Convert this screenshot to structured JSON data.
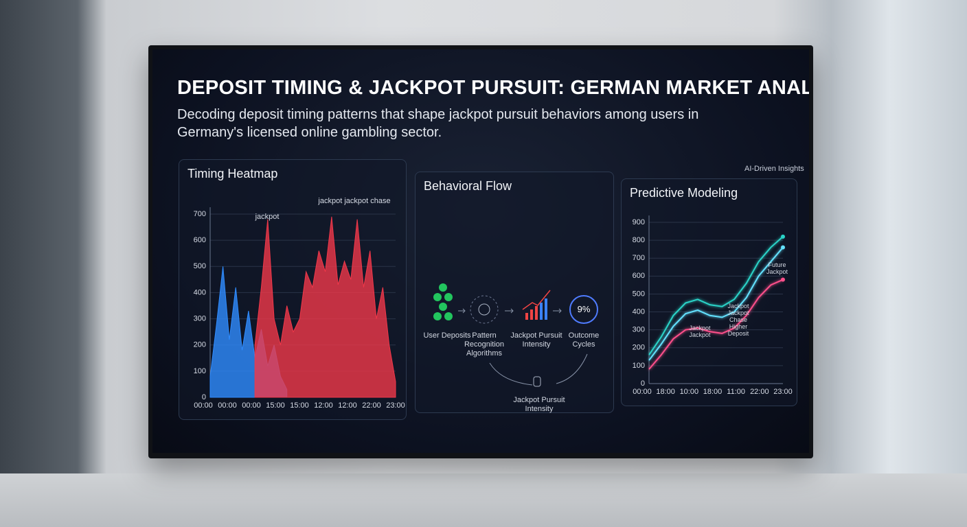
{
  "header": {
    "title": "DEPOSIT TIMING & JACKPOT PURSUIT: GERMAN MARKET ANALYSIS",
    "subtitle": "Decoding deposit timing patterns that shape jackpot pursuit behaviors among users in Germany's licensed online gambling sector.",
    "badge": "AI-Driven Insights"
  },
  "chart_data": [
    {
      "type": "area",
      "title": "Timing Heatmap",
      "xtick_labels": [
        "00:00",
        "00:00",
        "00:00",
        "15:00",
        "15:00",
        "12:00",
        "12:00",
        "22:00",
        "23:00"
      ],
      "ylim": [
        0,
        700
      ],
      "yticks": [
        0,
        100,
        200,
        300,
        400,
        500,
        600,
        700
      ],
      "annotations": [
        "jackpot",
        "jackpot jackpot chase"
      ],
      "series": [
        {
          "color": "#2f8cff",
          "values": [
            80,
            280,
            500,
            220,
            420,
            180,
            330,
            150,
            260,
            120,
            200,
            80,
            30,
            null,
            null,
            null,
            null,
            null,
            null,
            null,
            null,
            null,
            null,
            null,
            null,
            null,
            null,
            null,
            null,
            null
          ]
        },
        {
          "color": "#f0384a",
          "values": [
            null,
            null,
            null,
            null,
            null,
            null,
            null,
            200,
            420,
            680,
            300,
            200,
            350,
            250,
            300,
            480,
            420,
            560,
            480,
            690,
            430,
            520,
            450,
            680,
            420,
            560,
            300,
            420,
            200,
            60
          ]
        }
      ]
    },
    {
      "type": "line",
      "title": "Predictive Modeling",
      "xtick_labels": [
        "00:00",
        "18:00",
        "10:00",
        "18:00",
        "11:00",
        "22:00",
        "23:00"
      ],
      "ylim": [
        0,
        900
      ],
      "yticks": [
        0,
        100,
        200,
        300,
        400,
        500,
        600,
        700,
        800,
        900
      ],
      "annotations": [
        "Jackpot Jackpot",
        "Jackpot Jackpot Chase Higher Deposit",
        "Future Jackpot"
      ],
      "series": [
        {
          "color": "#2ad4c8",
          "values": [
            160,
            260,
            380,
            450,
            470,
            440,
            430,
            470,
            560,
            680,
            760,
            820
          ]
        },
        {
          "color": "#63e2ff",
          "values": [
            130,
            220,
            320,
            390,
            410,
            380,
            370,
            400,
            480,
            600,
            680,
            760
          ]
        },
        {
          "color": "#ff4f8b",
          "values": [
            80,
            160,
            250,
            300,
            310,
            290,
            280,
            310,
            380,
            480,
            550,
            580
          ]
        }
      ]
    }
  ],
  "diagram": {
    "title": "Behavioral Flow",
    "nodes": [
      {
        "label": "User Deposits"
      },
      {
        "label": "Pattern Recognition Algorithms"
      },
      {
        "label": "Jackpot Pursuit Intensity"
      },
      {
        "label": "Outcome Cycles",
        "value": "9%"
      },
      {
        "label": "Jackpot Pursuit Intensity"
      }
    ]
  }
}
